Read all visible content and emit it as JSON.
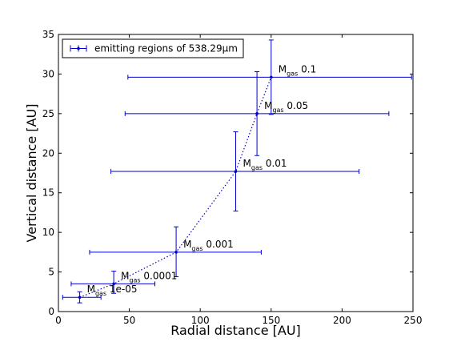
{
  "chart_data": {
    "type": "scatter",
    "xlabel": "Radial distance [AU]",
    "ylabel": "Vertical distance [AU]",
    "xlim": [
      0,
      250
    ],
    "ylim": [
      0,
      35
    ],
    "xticks": [
      "0",
      "50",
      "100",
      "150",
      "200",
      "250"
    ],
    "yticks": [
      "0",
      "5",
      "10",
      "15",
      "20",
      "25",
      "30",
      "35"
    ],
    "grid": false,
    "legend_position": "top-left",
    "series": [
      {
        "name": "emitting regions of 538.29μm",
        "color": "#0000cc",
        "line_style": "dotted",
        "points": [
          {
            "x": 15,
            "y": 1.8,
            "x_err": [
              12,
              15
            ],
            "y_err": [
              0.7,
              0.7
            ]
          },
          {
            "x": 39,
            "y": 3.5,
            "x_err": [
              30,
              29
            ],
            "y_err": [
              1.2,
              1.6
            ]
          },
          {
            "x": 83,
            "y": 7.5,
            "x_err": [
              61,
              60
            ],
            "y_err": [
              3.1,
              3.2
            ]
          },
          {
            "x": 125,
            "y": 17.7,
            "x_err": [
              88,
              87
            ],
            "y_err": [
              5.0,
              5.0
            ]
          },
          {
            "x": 140,
            "y": 25.0,
            "x_err": [
              93,
              93
            ],
            "y_err": [
              5.3,
              5.3
            ]
          },
          {
            "x": 150,
            "y": 29.6,
            "x_err": [
              101,
              99
            ],
            "y_err": [
              4.7,
              4.7
            ]
          }
        ]
      }
    ],
    "annotations": [
      {
        "x": 15,
        "y": 1.8,
        "main": "M",
        "sub": "gas",
        "value": "1e-05"
      },
      {
        "x": 39,
        "y": 3.5,
        "main": "M",
        "sub": "gas",
        "value": "0.0001"
      },
      {
        "x": 83,
        "y": 7.5,
        "main": "M",
        "sub": "gas",
        "value": "0.001"
      },
      {
        "x": 125,
        "y": 17.7,
        "main": "M",
        "sub": "gas",
        "value": "0.01"
      },
      {
        "x": 140,
        "y": 25.0,
        "main": "M",
        "sub": "gas",
        "value": "0.05"
      },
      {
        "x": 150,
        "y": 29.6,
        "main": "M",
        "sub": "gas",
        "value": "0.1"
      }
    ]
  }
}
